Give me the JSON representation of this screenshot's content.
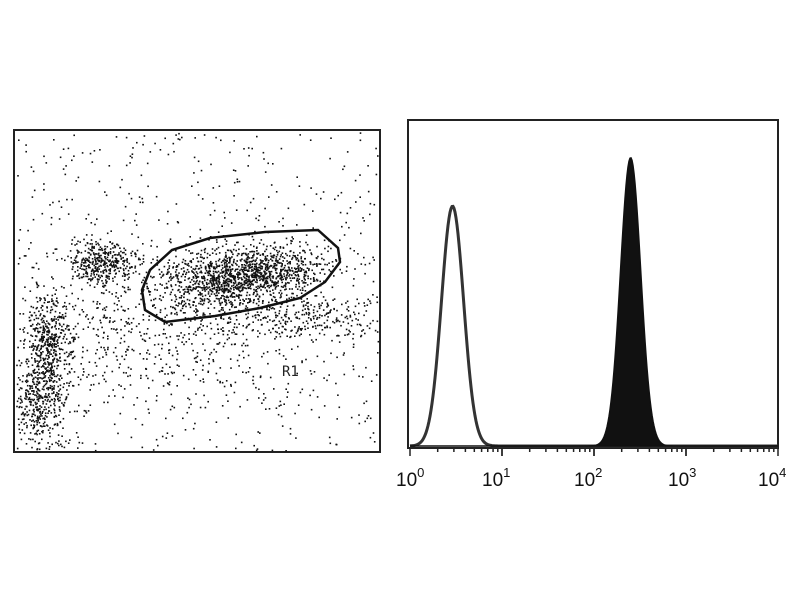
{
  "chart_data": [
    {
      "type": "scatter",
      "title": "",
      "xlabel": "",
      "ylabel": "",
      "gate": {
        "label": "R1",
        "shape": "polygon"
      },
      "point_color": "#111111"
    },
    {
      "type": "area",
      "title": "",
      "xlabel": "",
      "ylabel": "",
      "x_scale": "log",
      "xlim": [
        1,
        10000
      ],
      "x_ticks": [
        {
          "base": "10",
          "exp": "0"
        },
        {
          "base": "10",
          "exp": "1"
        },
        {
          "base": "10",
          "exp": "2"
        },
        {
          "base": "10",
          "exp": "3"
        },
        {
          "base": "10",
          "exp": "4"
        }
      ],
      "series": [
        {
          "fill": "none",
          "stroke": "#333333",
          "peak_x": 2.9,
          "peak_relative_height": 0.74,
          "spread_decades": 0.12
        },
        {
          "fill": "#111111",
          "stroke": "#111111",
          "peak_x": 250,
          "peak_relative_height": 0.89,
          "spread_decades": 0.11
        }
      ]
    }
  ]
}
